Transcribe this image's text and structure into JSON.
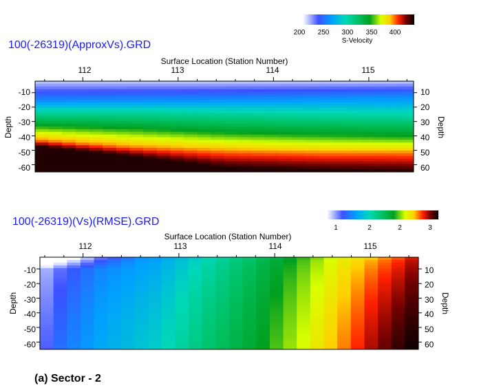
{
  "chart_data": [
    {
      "type": "heatmap",
      "title": "100(-26319)(ApproxVs).GRD",
      "xlabel": "Surface Location (Station Number)",
      "ylabel": "Depth",
      "x_ticks": [
        "112",
        "113",
        "114",
        "115"
      ],
      "y_ticks": [
        "-10",
        "-20",
        "-30",
        "-40",
        "-50",
        "-60"
      ],
      "y_ticks_right": [
        "10",
        "20",
        "30",
        "40",
        "50",
        "60"
      ],
      "xlim": [
        111.5,
        115.47
      ],
      "ylim": [
        -65,
        -2
      ],
      "colorbar": {
        "label": "S-Velocity",
        "ticks": [
          "200",
          "250",
          "300",
          "350",
          "400"
        ],
        "range": [
          195,
          445
        ]
      },
      "contours": [
        {
          "name": "v250",
          "level": 250,
          "x": [
            111.5,
            112.5,
            113.5,
            114.5,
            115.47
          ],
          "depth": [
            -15,
            -14.5,
            -14,
            -13,
            -12
          ]
        },
        {
          "name": "v300",
          "level": 300,
          "x": [
            111.5,
            112.5,
            113.5,
            114.5,
            115.47
          ],
          "depth": [
            -24,
            -24,
            -25,
            -26,
            -27
          ]
        },
        {
          "name": "v350",
          "level": 350,
          "x": [
            111.5,
            112.5,
            113.5,
            114.5,
            115.47
          ],
          "depth": [
            -34,
            -36,
            -39,
            -40.5,
            -41.5
          ]
        },
        {
          "name": "v400",
          "level": 400,
          "x": [
            111.5,
            112.5,
            113.5,
            114.5,
            115.47
          ],
          "depth": [
            -43,
            -48,
            -51,
            -52,
            -52
          ]
        },
        {
          "name": "v440",
          "level": 440,
          "x": [
            111.5,
            112.5,
            113.5,
            114.5,
            115.47
          ],
          "depth": [
            -47,
            -54,
            -62,
            -64,
            -65
          ]
        }
      ]
    },
    {
      "type": "heatmap",
      "title": "100(-26319)(Vs)(RMSE).GRD",
      "xlabel": "Surface Location (Station Number)",
      "ylabel": "Depth",
      "x_ticks": [
        "112",
        "113",
        "114",
        "115"
      ],
      "y_ticks": [
        "-10",
        "-20",
        "-30",
        "-40",
        "-50",
        "-60"
      ],
      "y_ticks_right": [
        "10",
        "20",
        "30",
        "40",
        "50",
        "60"
      ],
      "xlim": [
        111.55,
        115.5
      ],
      "ylim": [
        -65,
        -2
      ],
      "colorbar": {
        "label": "",
        "ticks": [
          "1",
          "2",
          "2",
          "3"
        ],
        "range": [
          0,
          1
        ]
      },
      "profile": {
        "x": [
          111.55,
          111.8,
          112.2,
          112.8,
          113.3,
          113.8,
          114.2,
          114.6,
          115.0,
          115.3,
          115.5
        ],
        "value_top": [
          0.02,
          0.1,
          0.2,
          0.26,
          0.38,
          0.5,
          0.6,
          0.7,
          0.78,
          0.84,
          0.9
        ],
        "value_bottom": [
          0.1,
          0.2,
          0.28,
          0.36,
          0.48,
          0.58,
          0.68,
          0.78,
          0.9,
          0.97,
          1.0
        ]
      }
    }
  ],
  "caption": "(a) Sector - 2"
}
